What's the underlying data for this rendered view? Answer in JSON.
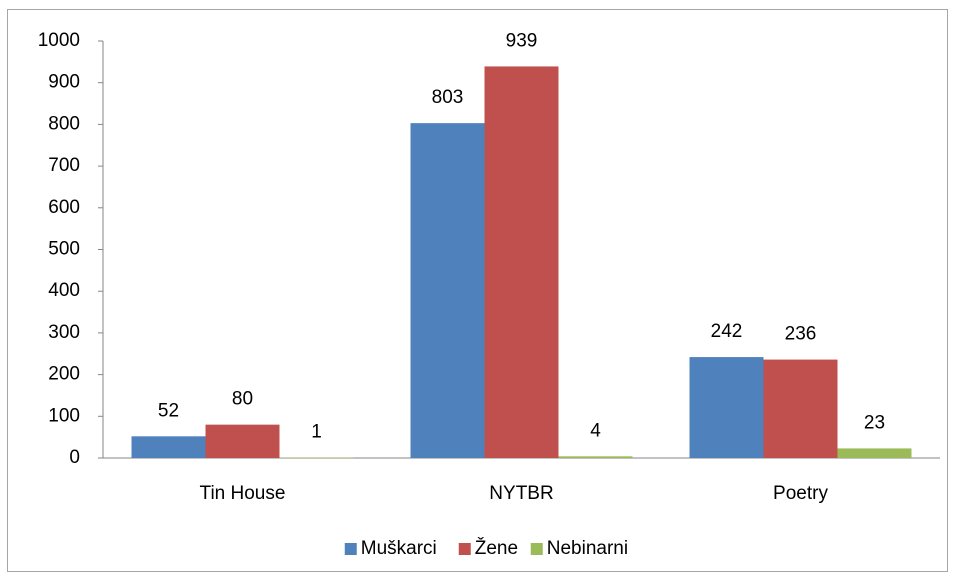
{
  "chart_data": {
    "type": "bar",
    "categories": [
      "Tin House",
      "NYTBR",
      "Poetry"
    ],
    "series": [
      {
        "name": "Muškarci",
        "color": "#4f81bd",
        "values": [
          52,
          803,
          242
        ]
      },
      {
        "name": "Žene",
        "color": "#c0504d",
        "values": [
          80,
          939,
          236
        ]
      },
      {
        "name": "Nebinarni",
        "color": "#9bbb59",
        "values": [
          1,
          4,
          23
        ]
      }
    ],
    "ylim": [
      0,
      1000
    ],
    "yticks": [
      0,
      100,
      200,
      300,
      400,
      500,
      600,
      700,
      800,
      900,
      1000
    ],
    "grid": false,
    "show_value_labels": true,
    "legend": "bottom"
  }
}
